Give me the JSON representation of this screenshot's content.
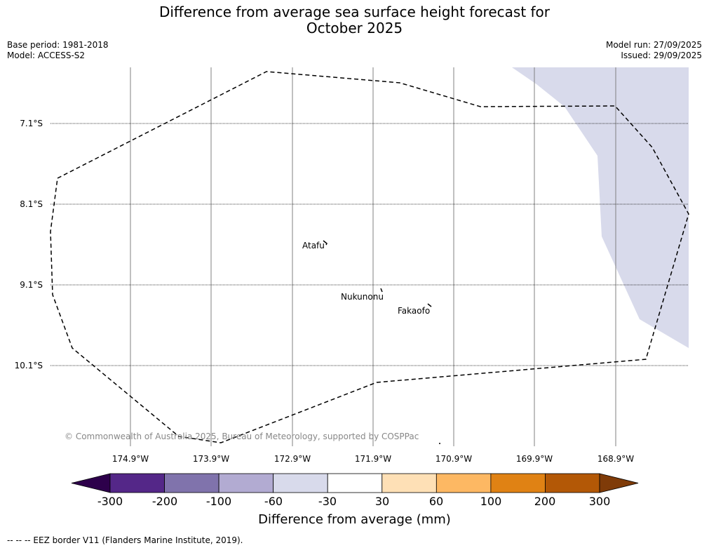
{
  "title_line1": "Difference from average sea surface height forecast for",
  "title_line2": "October 2025",
  "base_period": "Base period: 1981-2018",
  "model": "Model: ACCESS-S2",
  "model_run": "Model run: 27/09/2025",
  "issued": "Issued: 29/09/2025",
  "latitude_labels": [
    "7.1°S",
    "8.1°S",
    "9.1°S",
    "10.1°S"
  ],
  "longitude_labels": [
    "174.9°W",
    "173.9°W",
    "172.9°W",
    "171.9°W",
    "170.9°W",
    "169.9°W",
    "168.9°W"
  ],
  "places": [
    "Atafu",
    "Nukunonu",
    "Fakaofo"
  ],
  "copyright": "© Commonwealth of Australia 2025, Bureau of Meteorology, supported by COSPPac",
  "colorbar": {
    "ticks": [
      "-300",
      "-200",
      "-100",
      "-60",
      "-30",
      "30",
      "60",
      "100",
      "200",
      "300"
    ],
    "colors": [
      "#2d004b",
      "#542788",
      "#8073ac",
      "#b2abd2",
      "#d8daeb",
      "#ffffff",
      "#fee0b6",
      "#fdb863",
      "#e08214",
      "#b35806",
      "#7f3b08"
    ],
    "label": "Difference from average (mm)"
  },
  "shaded_category": "-60 to -30 mm",
  "footnote": "--  --  -- EEZ border V11 (Flanders Marine Institute, 2019)."
}
